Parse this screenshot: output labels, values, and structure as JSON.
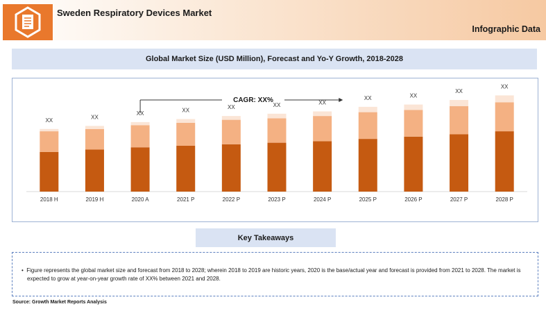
{
  "header": {
    "title": "Sweden Respiratory Devices Market",
    "right_label": "Infographic Data",
    "logo_icon": "document-icon"
  },
  "chart_data": {
    "type": "bar",
    "title": "Global Market Size (USD Million), Forecast and Yo-Y Growth, 2018-2028",
    "categories": [
      "2018 H",
      "2019 H",
      "2020 A",
      "2021 P",
      "2022 P",
      "2023 P",
      "2024 P",
      "2025 P",
      "2026 P",
      "2027 P",
      "2028 P"
    ],
    "series": [
      {
        "color": "#c55a11",
        "values": [
          52,
          55,
          58,
          60,
          62,
          64,
          66,
          69,
          72,
          75,
          79
        ]
      },
      {
        "color": "#f4b183",
        "values": [
          27,
          27,
          29,
          30,
          32,
          32,
          33,
          35,
          35,
          37,
          38
        ]
      },
      {
        "color": "#fbe5d6",
        "values": [
          3,
          4,
          4,
          5,
          5,
          6,
          6,
          7,
          7,
          8,
          9
        ]
      }
    ],
    "data_labels": [
      "XX",
      "XX",
      "XX",
      "XX",
      "XX",
      "XX",
      "XX",
      "XX",
      "XX",
      "XX",
      "XX"
    ],
    "annotation": "CAGR: XX%",
    "ylim": [
      0,
      130
    ],
    "grid": false
  },
  "takeaways": {
    "title": "Key Takeaways",
    "bullet": "Figure represents the global market size and forecast from 2018 to 2028; wherein 2018 to 2019 are historic years, 2020 is the base/actual year and forecast is provided from 2021 to 2028. The market is expected to grow at year-on-year growth rate of XX% between 2021 and 2028."
  },
  "source": "Source: Growth Market Reports Analysis"
}
